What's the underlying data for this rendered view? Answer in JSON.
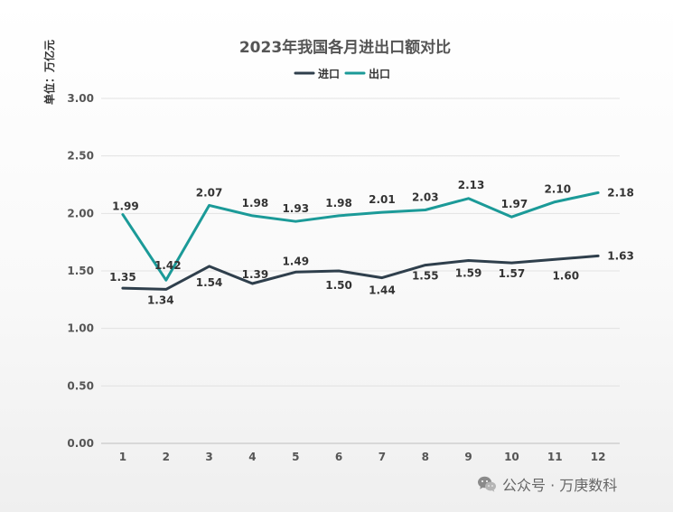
{
  "chart_data": {
    "type": "line",
    "title": "2023年我国各月进出口额对比",
    "ylabel": "单位：万亿元",
    "categories": [
      "1",
      "2",
      "3",
      "4",
      "5",
      "6",
      "7",
      "8",
      "9",
      "10",
      "11",
      "12"
    ],
    "ylim": [
      0,
      3
    ],
    "yticks": [
      "0.00",
      "0.50",
      "1.00",
      "1.50",
      "2.00",
      "2.50",
      "3.00"
    ],
    "grid": true,
    "legend_position": "top-center",
    "series": [
      {
        "name": "进口",
        "color": "#2f3f4c",
        "values": [
          1.35,
          1.34,
          1.54,
          1.39,
          1.49,
          1.5,
          1.44,
          1.55,
          1.59,
          1.57,
          1.6,
          1.63
        ],
        "labels": [
          "1.35",
          "1.34",
          "1.54",
          "1.39",
          "1.49",
          "1.50",
          "1.44",
          "1.55",
          "1.59",
          "1.57",
          "1.60",
          "1.63"
        ]
      },
      {
        "name": "出口",
        "color": "#1b9a98",
        "values": [
          1.99,
          1.42,
          2.07,
          1.98,
          1.93,
          1.98,
          2.01,
          2.03,
          2.13,
          1.97,
          2.1,
          2.18
        ],
        "labels": [
          "1.99",
          "1.42",
          "2.07",
          "1.98",
          "1.93",
          "1.98",
          "2.01",
          "2.03",
          "2.13",
          "1.97",
          "2.10",
          "2.18"
        ]
      }
    ]
  },
  "watermark": {
    "text": "公众号 · 万庚数科",
    "icon": "wechat-icon"
  }
}
